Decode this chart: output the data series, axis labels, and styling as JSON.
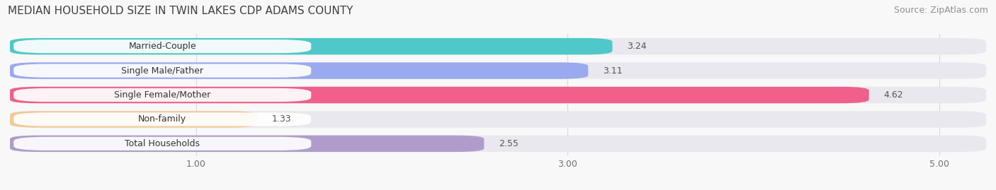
{
  "title": "MEDIAN HOUSEHOLD SIZE IN TWIN LAKES CDP ADAMS COUNTY",
  "source": "Source: ZipAtlas.com",
  "categories": [
    "Married-Couple",
    "Single Male/Father",
    "Single Female/Mother",
    "Non-family",
    "Total Households"
  ],
  "values": [
    3.24,
    3.11,
    4.62,
    1.33,
    2.55
  ],
  "bar_colors": [
    "#4ec8c8",
    "#99aaee",
    "#f0608a",
    "#f5c89a",
    "#b09ccc"
  ],
  "xlim_min": 0.0,
  "xlim_max": 5.25,
  "xticks": [
    1.0,
    3.0,
    5.0
  ],
  "xtick_labels": [
    "1.00",
    "3.00",
    "5.00"
  ],
  "value_fontsize": 9,
  "label_fontsize": 9,
  "title_fontsize": 11,
  "source_fontsize": 9,
  "bar_height": 0.68,
  "background_color": "#f8f8f8",
  "bar_bg_color": "#e8e8ee",
  "title_color": "#404040",
  "source_color": "#909090",
  "label_pill_color": "#ffffff",
  "grid_color": "#d8d8d8"
}
